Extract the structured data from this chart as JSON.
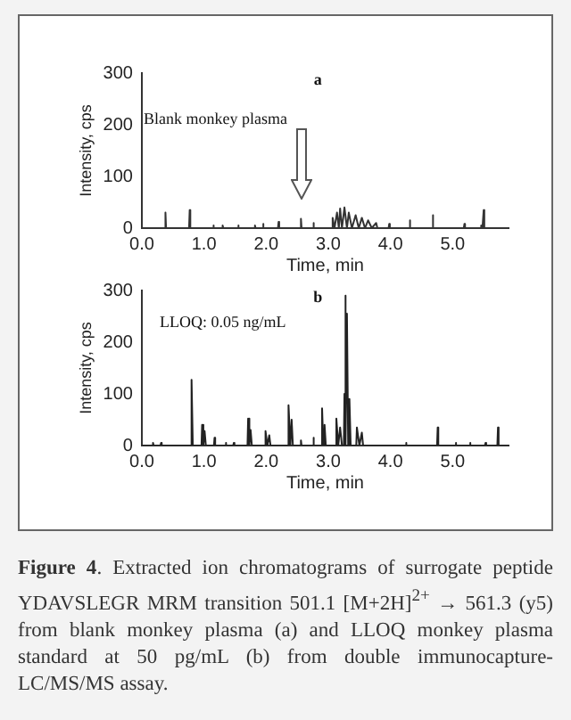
{
  "chart_data": [
    {
      "type": "line",
      "xlabel": "Time, min",
      "ylabel": "Intensity, cps",
      "annotations": [
        "a",
        "Blank monkey plasma"
      ],
      "x": [
        0,
        0.37,
        0.38,
        0.39,
        0.76,
        0.77,
        0.78,
        1.14,
        1.15,
        1.16,
        1.29,
        1.3,
        1.31,
        1.54,
        1.55,
        1.56,
        1.81,
        1.82,
        1.83,
        1.94,
        1.95,
        1.96,
        2.19,
        2.2,
        2.21,
        2.55,
        2.56,
        2.57,
        2.75,
        2.76,
        2.77,
        3.06,
        3.07,
        3.1,
        3.14,
        3.17,
        3.19,
        3.22,
        3.26,
        3.3,
        3.33,
        3.38,
        3.44,
        3.49,
        3.54,
        3.59,
        3.64,
        3.7,
        3.77,
        3.79,
        3.97,
        3.98,
        3.99,
        4.3,
        4.31,
        4.32,
        4.67,
        4.68,
        4.69,
        5.18,
        5.19,
        5.2,
        5.45,
        5.46,
        5.48,
        5.5,
        5.51,
        5.9
      ],
      "values": [
        0,
        0,
        30,
        0,
        0,
        35,
        0,
        0,
        5,
        0,
        0,
        5,
        0,
        0,
        5,
        0,
        0,
        5,
        0,
        0,
        8,
        0,
        0,
        12,
        0,
        0,
        18,
        0,
        0,
        10,
        0,
        0,
        20,
        0,
        30,
        0,
        38,
        0,
        40,
        0,
        30,
        0,
        25,
        0,
        20,
        0,
        15,
        0,
        10,
        0,
        0,
        8,
        0,
        0,
        15,
        0,
        0,
        25,
        0,
        0,
        8,
        0,
        0,
        5,
        0,
        35,
        0,
        0
      ],
      "color": "#333333",
      "xlim": [
        0,
        5.9
      ],
      "ylim": [
        0,
        300
      ],
      "xticks": [
        {
          "value": 0,
          "label": "0.0"
        },
        {
          "value": 1,
          "label": "1.0"
        },
        {
          "value": 2,
          "label": "2.0"
        },
        {
          "value": 3,
          "label": "3.0"
        },
        {
          "value": 4,
          "label": "4.0"
        },
        {
          "value": 5,
          "label": "5.0"
        }
      ],
      "yticks": [
        0,
        100,
        200,
        300
      ],
      "grid": false,
      "legend": false,
      "marker": "none",
      "line_style": "solid"
    },
    {
      "type": "line",
      "xlabel": "Time, min",
      "ylabel": "Intensity, cps",
      "annotations": [
        "b",
        "LLOQ: 0.05 ng/mL",
        "Figure 4. Extracted ion chromatograms of surrogate peptide YDAVSLEGR MRM transition 501.1 [M+2H]$^{2+}$ → 561.3 (y5) from blank monkey plasma (a) and LLOQ monkey plasma standard at 50 pg/mL (b) from double immunocapture-LC/MS/MS assay."
      ],
      "x": [
        0,
        0.17,
        0.18,
        0.19,
        0.3,
        0.31,
        0.32,
        0.79,
        0.8,
        0.82,
        0.96,
        0.97,
        0.99,
        1.01,
        1.03,
        1.16,
        1.17,
        1.18,
        1.34,
        1.35,
        1.36,
        1.47,
        1.48,
        1.49,
        1.7,
        1.71,
        1.73,
        1.75,
        1.77,
        1.98,
        1.99,
        2.02,
        2.05,
        2.07,
        2.35,
        2.36,
        2.39,
        2.41,
        2.43,
        2.55,
        2.56,
        2.57,
        2.75,
        2.76,
        2.77,
        2.89,
        2.9,
        2.92,
        2.94,
        2.96,
        3.12,
        3.13,
        3.16,
        3.19,
        3.22,
        3.25,
        3.26,
        3.27,
        3.285,
        3.3,
        3.32,
        3.34,
        3.36,
        3.45,
        3.46,
        3.5,
        3.54,
        3.56,
        4.24,
        4.25,
        4.26,
        4.75,
        4.76,
        4.77,
        5.04,
        5.05,
        5.06,
        5.27,
        5.28,
        5.29,
        5.52,
        5.53,
        5.54,
        5.72,
        5.73,
        5.74,
        5.9
      ],
      "values": [
        0,
        0,
        5,
        0,
        0,
        5,
        0,
        0,
        127,
        0,
        0,
        40,
        0,
        28,
        0,
        0,
        15,
        0,
        0,
        5,
        0,
        0,
        5,
        0,
        0,
        52,
        0,
        30,
        0,
        0,
        28,
        0,
        20,
        0,
        0,
        78,
        0,
        50,
        0,
        0,
        10,
        0,
        0,
        15,
        0,
        0,
        72,
        0,
        40,
        0,
        0,
        52,
        0,
        35,
        0,
        0,
        100,
        290,
        0,
        255,
        0,
        90,
        0,
        0,
        35,
        0,
        25,
        0,
        0,
        5,
        0,
        0,
        35,
        0,
        0,
        5,
        0,
        0,
        5,
        0,
        0,
        5,
        0,
        0,
        35,
        0,
        0
      ],
      "color": "#222222",
      "xlim": [
        0,
        5.9
      ],
      "ylim": [
        0,
        300
      ],
      "xticks": [
        {
          "value": 0,
          "label": "0.0"
        },
        {
          "value": 1,
          "label": "1.0"
        },
        {
          "value": 2,
          "label": "2.0"
        },
        {
          "value": 3,
          "label": "3.0"
        },
        {
          "value": 4,
          "label": "4.0"
        },
        {
          "value": 5,
          "label": "5.0"
        }
      ],
      "yticks": [
        0,
        100,
        200,
        300
      ],
      "grid": false,
      "legend": false,
      "marker": "none",
      "line_style": "solid"
    }
  ]
}
